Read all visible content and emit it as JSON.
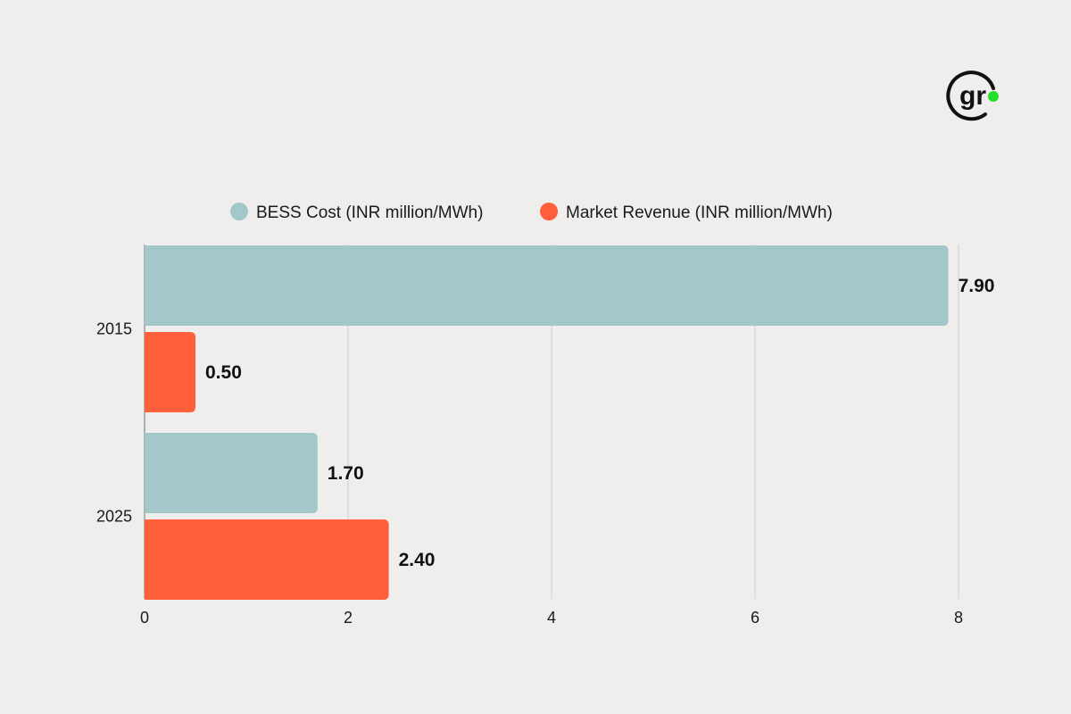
{
  "logo": {
    "text": "gr",
    "accent": "#22e02a"
  },
  "chart_data": {
    "type": "bar",
    "orientation": "horizontal",
    "title": "",
    "xlabel": "",
    "ylabel": "",
    "categories": [
      "2015",
      "2025"
    ],
    "series": [
      {
        "name": "BESS Cost (INR million/MWh)",
        "color": "#a2c8ca",
        "values": [
          7.9,
          1.7
        ],
        "labels": [
          "7.90",
          "1.70"
        ]
      },
      {
        "name": "Market Revenue (INR million/MWh)",
        "color": "#ff5f3a",
        "values": [
          0.5,
          2.4
        ],
        "labels": [
          "0.50",
          "2.40"
        ]
      }
    ],
    "xlim": [
      0,
      8
    ],
    "xticks": [
      0,
      2,
      4,
      6,
      8
    ],
    "grid": "vertical",
    "legend_position": "top"
  }
}
